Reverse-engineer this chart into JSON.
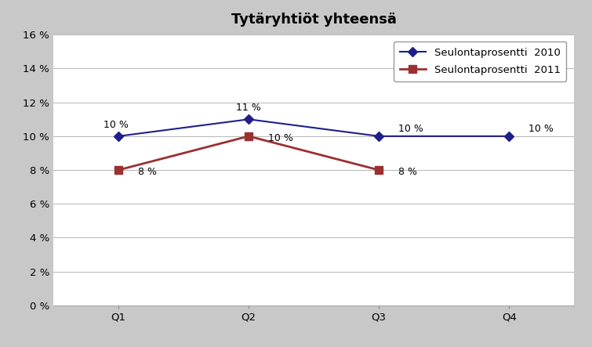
{
  "title": "Tytäryhtiöt yhteensä",
  "categories": [
    "Q1",
    "Q2",
    "Q3",
    "Q4"
  ],
  "series_2010": [
    10,
    11,
    10,
    10
  ],
  "series_2011": [
    8,
    10,
    8,
    null
  ],
  "series_2010_labels": [
    "10 %",
    "11 %",
    "10 %",
    "10 %"
  ],
  "series_2011_labels": [
    "8 %",
    "10 %",
    "8 %",
    null
  ],
  "color_2010": "#1F1F8B",
  "color_2011": "#9B3030",
  "marker_2010": "D",
  "marker_2011": "s",
  "legend_2010": "Seulontaprosentti  2010",
  "legend_2011": "Seulontaprosentti  2011",
  "ylim": [
    0,
    16
  ],
  "yticks": [
    0,
    2,
    4,
    6,
    8,
    10,
    12,
    14,
    16
  ],
  "background_outer": "#C8C8C8",
  "background_plot": "#FFFFFF",
  "title_fontsize": 13,
  "label_fontsize": 9,
  "tick_fontsize": 9.5,
  "legend_fontsize": 9.5
}
